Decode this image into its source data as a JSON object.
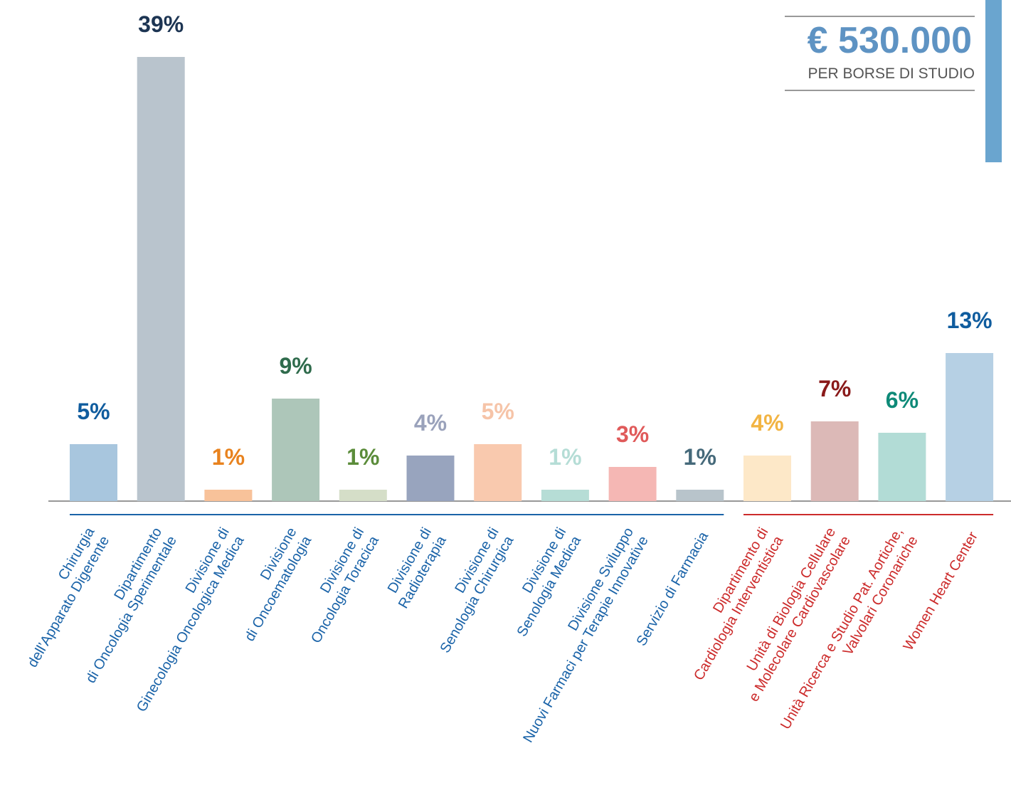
{
  "chart_data": {
    "type": "bar",
    "annotations": {
      "amount": "€ 530.000",
      "caption": "PER BORSE DI STUDIO"
    },
    "categories": [
      "Chirurgia\ndell’Apparato Digerente",
      "Dipartimento\ndi Oncologia Sperimentale",
      "Divisione di\nGinecologia Oncologica Medica",
      "Divisione\ndi Oncoematologia",
      "Divisione di\nOncologia Toracica",
      "Divisione di\nRadioterapia",
      "Divisione di\nSenologia Chirurgica",
      "Divisione di\nSenologia Medica",
      "Divisione Sviluppo\nNuovi Farmaci per Terapie Innovative",
      "Servizio di Farmacia",
      "Dipartimento di\nCardiologia Interventistica",
      "Unità di Biologia Cellulare\ne Molecolare Cardiovascolare",
      "Unità Ricerca e Studio Pat. Aortiche,\nValvolari Coronariche",
      "Women Heart Center"
    ],
    "values": [
      5,
      39,
      1,
      9,
      1,
      4,
      5,
      1,
      3,
      1,
      4,
      7,
      6,
      13
    ],
    "value_labels": [
      "5%",
      "39%",
      "1%",
      "9%",
      "1%",
      "4%",
      "5%",
      "1%",
      "3%",
      "1%",
      "4%",
      "7%",
      "6%",
      "13%"
    ],
    "colors": [
      "#a8c6de",
      "#b9c4cd",
      "#f8c29a",
      "#adc6b9",
      "#d5dec8",
      "#98a4be",
      "#f9c9ae",
      "#b6ddd6",
      "#f5b7b4",
      "#b8c4cb",
      "#fde8c8",
      "#dcb9b7",
      "#b2dcd6",
      "#b6d0e4"
    ],
    "label_colors": [
      "#0f5c9e",
      "#1d3553",
      "#e8821e",
      "#2f6b4c",
      "#5b8c3a",
      "#9aa2bb",
      "#f6c4a8",
      "#b5ddd6",
      "#e05a5a",
      "#45697a",
      "#f2b443",
      "#8a1a1a",
      "#0e8a78",
      "#0f5c9e"
    ],
    "category_colors": [
      "#1a63a8",
      "#1a63a8",
      "#1a63a8",
      "#1a63a8",
      "#1a63a8",
      "#1a63a8",
      "#1a63a8",
      "#1a63a8",
      "#1a63a8",
      "#1a63a8",
      "#cc2b2b",
      "#cc2b2b",
      "#cc2b2b",
      "#cc2b2b"
    ]
  }
}
